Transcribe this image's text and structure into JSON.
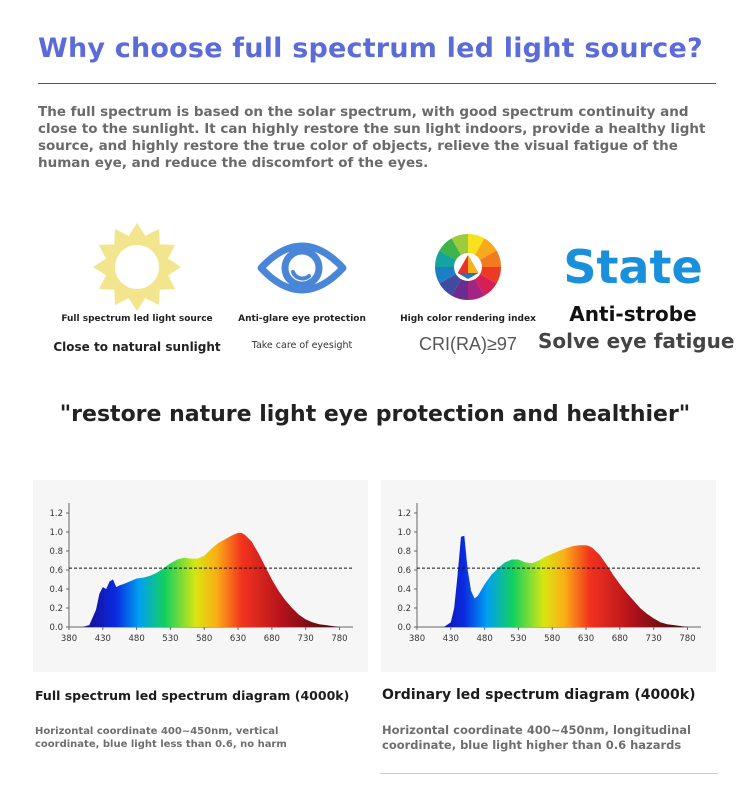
{
  "header": {
    "title": "Why choose full spectrum led light source?",
    "intro": "The full spectrum is based on the solar spectrum, with good spectrum continuity and close to the sunlight. It can highly restore the sun light indoors, provide a healthy light source, and highly restore the true color of objects, relieve the visual fatigue of the human eye, and reduce the discomfort of the eyes."
  },
  "features": [
    {
      "icon": "sun-icon",
      "title": "Full spectrum led light source",
      "subtitle": "Close to natural sunlight",
      "color": "#f3e58e"
    },
    {
      "icon": "eye-icon",
      "title": "Anti-glare eye protection",
      "subtitle": "Take care of eyesight",
      "color": "#4a86d8"
    },
    {
      "icon": "color-wheel-icon",
      "title": "High color rendering index",
      "subtitle": "CRI(RA)≥97"
    },
    {
      "icon": "state-text-logo",
      "title": "State",
      "subtitle": "Anti-strobe",
      "subtitle2": "Solve eye fatigue",
      "color": "#1a8fdb"
    }
  ],
  "quote": "\"restore nature light eye protection and healthier\"",
  "chart_data": [
    {
      "type": "area",
      "title": "",
      "x_ticks": [
        380,
        430,
        480,
        530,
        580,
        630,
        680,
        730,
        780
      ],
      "y_ticks": [
        "0.0",
        "0.2",
        "0.4",
        "0.6",
        "0.8",
        "1.0",
        "1.2"
      ],
      "xlim": [
        380,
        800
      ],
      "ylim": [
        0,
        1.2
      ],
      "threshold": 0.62,
      "series": [
        {
          "x": [
            400,
            410,
            420,
            425,
            430,
            435,
            440,
            445,
            450,
            455,
            460,
            470,
            480,
            490,
            500,
            510,
            520,
            530,
            540,
            550,
            560,
            570,
            580,
            590,
            600,
            610,
            620,
            630,
            635,
            640,
            650,
            660,
            670,
            680,
            690,
            700,
            710,
            720,
            730,
            740,
            750,
            760,
            770,
            780
          ],
          "y": [
            0.0,
            0.02,
            0.18,
            0.35,
            0.42,
            0.4,
            0.48,
            0.5,
            0.42,
            0.44,
            0.45,
            0.48,
            0.51,
            0.52,
            0.54,
            0.57,
            0.62,
            0.67,
            0.71,
            0.73,
            0.72,
            0.72,
            0.75,
            0.82,
            0.88,
            0.92,
            0.96,
            0.99,
            0.99,
            0.97,
            0.9,
            0.78,
            0.64,
            0.5,
            0.38,
            0.28,
            0.2,
            0.13,
            0.08,
            0.05,
            0.03,
            0.02,
            0.01,
            0.0
          ]
        }
      ]
    },
    {
      "type": "area",
      "title": "",
      "x_ticks": [
        380,
        430,
        480,
        530,
        580,
        630,
        680,
        730,
        780
      ],
      "y_ticks": [
        "0.0",
        "0.2",
        "0.4",
        "0.6",
        "0.8",
        "1.0",
        "1.2"
      ],
      "xlim": [
        380,
        800
      ],
      "ylim": [
        0,
        1.2
      ],
      "threshold": 0.62,
      "series": [
        {
          "x": [
            420,
            430,
            435,
            440,
            445,
            450,
            455,
            460,
            465,
            470,
            480,
            490,
            500,
            510,
            520,
            530,
            540,
            550,
            560,
            570,
            580,
            590,
            600,
            610,
            620,
            630,
            635,
            640,
            650,
            660,
            670,
            680,
            690,
            700,
            710,
            720,
            730,
            740,
            750,
            760,
            780
          ],
          "y": [
            0.0,
            0.05,
            0.2,
            0.55,
            0.95,
            0.96,
            0.6,
            0.38,
            0.3,
            0.33,
            0.45,
            0.55,
            0.62,
            0.68,
            0.71,
            0.71,
            0.68,
            0.67,
            0.7,
            0.74,
            0.77,
            0.8,
            0.83,
            0.85,
            0.86,
            0.86,
            0.85,
            0.83,
            0.76,
            0.66,
            0.55,
            0.45,
            0.36,
            0.28,
            0.2,
            0.14,
            0.09,
            0.05,
            0.03,
            0.02,
            0.0
          ]
        }
      ]
    }
  ],
  "captions": [
    {
      "title": "Full spectrum led spectrum diagram (4000k)",
      "note": "Horizontal coordinate 400~450nm, vertical coordinate, blue light less than 0.6, no harm"
    },
    {
      "title": "Ordinary led spectrum diagram (4000k)",
      "note": "Horizontal coordinate 400~450nm, longitudinal coordinate, blue light higher than 0.6 hazards"
    }
  ]
}
